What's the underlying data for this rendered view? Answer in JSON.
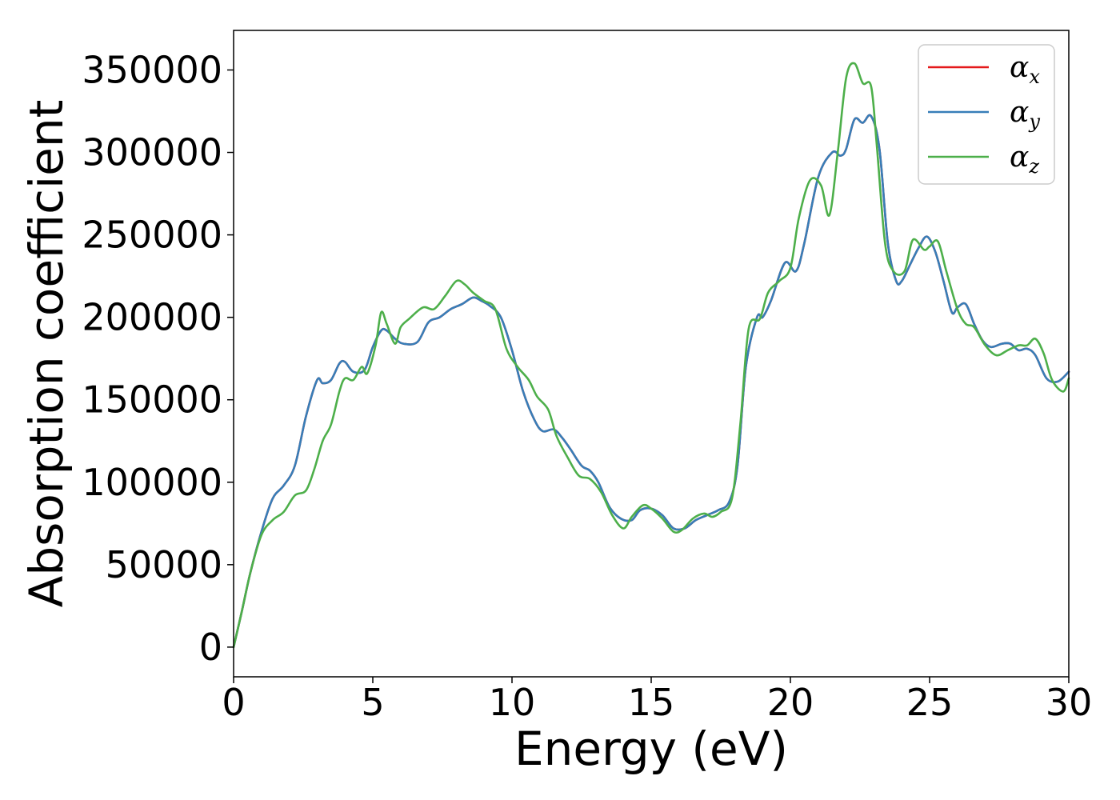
{
  "chart_data": {
    "type": "line",
    "title": "",
    "xlabel": "Energy (eV)",
    "ylabel": "Absorption coefficient",
    "xlim": [
      0,
      30
    ],
    "ylim": [
      -18000,
      374000
    ],
    "xticks": [
      0,
      5,
      10,
      15,
      20,
      25,
      30
    ],
    "yticks": [
      0,
      50000,
      100000,
      150000,
      200000,
      250000,
      300000,
      350000
    ],
    "grid": false,
    "legend_position": "top-right",
    "series": [
      {
        "name": "α",
        "subscript": "x",
        "color": "#e41a1c",
        "x": [
          0,
          0.3,
          0.6,
          1.0,
          1.4,
          1.8,
          2.2,
          2.6,
          3.0,
          3.2,
          3.5,
          3.8,
          4.0,
          4.3,
          4.7,
          5.0,
          5.3,
          5.5,
          5.8,
          6.1,
          6.6,
          7.0,
          7.4,
          7.8,
          8.2,
          8.6,
          8.9,
          9.2,
          9.6,
          10.0,
          10.4,
          10.8,
          11.1,
          11.5,
          11.8,
          12.1,
          12.5,
          12.8,
          13.1,
          13.5,
          13.9,
          14.3,
          14.6,
          15.0,
          15.4,
          15.8,
          16.2,
          16.6,
          17.0,
          17.4,
          17.8,
          18.1,
          18.4,
          18.8,
          19.0,
          19.3,
          19.8,
          20.2,
          20.5,
          21.0,
          21.5,
          21.8,
          22.0,
          22.3,
          22.6,
          22.9,
          23.2,
          23.5,
          23.8,
          24.0,
          24.3,
          24.6,
          24.9,
          25.2,
          25.5,
          25.8,
          26.0,
          26.3,
          26.6,
          26.9,
          27.2,
          27.6,
          27.9,
          28.2,
          28.5,
          28.8,
          29.2,
          29.6,
          30.0
        ],
        "y": [
          0,
          22000,
          45000,
          70000,
          90000,
          98000,
          110000,
          140000,
          162000,
          160000,
          162000,
          172000,
          173000,
          167000,
          168000,
          182000,
          192000,
          192000,
          187000,
          184000,
          185000,
          197000,
          200000,
          205000,
          208000,
          212000,
          210000,
          207000,
          200000,
          180000,
          155000,
          138000,
          131000,
          132000,
          127000,
          120000,
          110000,
          107000,
          100000,
          85000,
          78000,
          77000,
          83000,
          84000,
          80000,
          72000,
          72000,
          77000,
          80000,
          83000,
          88000,
          110000,
          170000,
          200000,
          200000,
          210000,
          233000,
          228000,
          245000,
          285000,
          300000,
          298000,
          302000,
          320000,
          318000,
          322000,
          302000,
          245000,
          222000,
          222000,
          232000,
          242000,
          249000,
          240000,
          222000,
          203000,
          206000,
          208000,
          196000,
          186000,
          182000,
          184000,
          184000,
          180000,
          181000,
          177000,
          163000,
          161000,
          167000
        ]
      },
      {
        "name": "α",
        "subscript": "y",
        "color": "#377eb8",
        "x": [
          0,
          0.3,
          0.6,
          1.0,
          1.4,
          1.8,
          2.2,
          2.6,
          3.0,
          3.2,
          3.5,
          3.8,
          4.0,
          4.3,
          4.7,
          5.0,
          5.3,
          5.5,
          5.8,
          6.1,
          6.6,
          7.0,
          7.4,
          7.8,
          8.2,
          8.6,
          8.9,
          9.2,
          9.6,
          10.0,
          10.4,
          10.8,
          11.1,
          11.5,
          11.8,
          12.1,
          12.5,
          12.8,
          13.1,
          13.5,
          13.9,
          14.3,
          14.6,
          15.0,
          15.4,
          15.8,
          16.2,
          16.6,
          17.0,
          17.4,
          17.8,
          18.1,
          18.4,
          18.8,
          19.0,
          19.3,
          19.8,
          20.2,
          20.5,
          21.0,
          21.5,
          21.8,
          22.0,
          22.3,
          22.6,
          22.9,
          23.2,
          23.5,
          23.8,
          24.0,
          24.3,
          24.6,
          24.9,
          25.2,
          25.5,
          25.8,
          26.0,
          26.3,
          26.6,
          26.9,
          27.2,
          27.6,
          27.9,
          28.2,
          28.5,
          28.8,
          29.2,
          29.6,
          30.0
        ],
        "y": [
          0,
          22000,
          45000,
          70000,
          90000,
          98000,
          110000,
          140000,
          162000,
          160000,
          162000,
          172000,
          173000,
          167000,
          168000,
          182000,
          192000,
          192000,
          187000,
          184000,
          185000,
          197000,
          200000,
          205000,
          208000,
          212000,
          210000,
          207000,
          200000,
          180000,
          155000,
          138000,
          131000,
          132000,
          127000,
          120000,
          110000,
          107000,
          100000,
          85000,
          78000,
          77000,
          83000,
          84000,
          80000,
          72000,
          72000,
          77000,
          80000,
          83000,
          88000,
          110000,
          170000,
          200000,
          200000,
          210000,
          233000,
          228000,
          245000,
          285000,
          300000,
          298000,
          302000,
          320000,
          318000,
          322000,
          302000,
          245000,
          222000,
          222000,
          232000,
          242000,
          249000,
          240000,
          222000,
          203000,
          206000,
          208000,
          196000,
          186000,
          182000,
          184000,
          184000,
          180000,
          181000,
          177000,
          163000,
          161000,
          167000
        ]
      },
      {
        "name": "α",
        "subscript": "z",
        "color": "#4daf4a",
        "x": [
          0,
          0.3,
          0.6,
          1.0,
          1.4,
          1.8,
          2.2,
          2.6,
          2.9,
          3.2,
          3.5,
          3.8,
          4.0,
          4.3,
          4.6,
          4.8,
          5.1,
          5.3,
          5.5,
          5.8,
          6.0,
          6.3,
          6.8,
          7.2,
          7.6,
          8.0,
          8.3,
          8.6,
          9.0,
          9.4,
          9.8,
          10.2,
          10.6,
          10.9,
          11.3,
          11.6,
          12.0,
          12.4,
          12.8,
          13.2,
          13.6,
          14.0,
          14.3,
          14.7,
          15.0,
          15.4,
          15.8,
          16.1,
          16.5,
          16.9,
          17.2,
          17.5,
          17.9,
          18.2,
          18.5,
          18.9,
          19.2,
          19.6,
          20.0,
          20.3,
          20.7,
          21.1,
          21.4,
          21.7,
          22.0,
          22.3,
          22.6,
          22.9,
          23.1,
          23.4,
          23.7,
          24.1,
          24.4,
          24.8,
          25.0,
          25.3,
          25.6,
          26.0,
          26.3,
          26.6,
          27.0,
          27.4,
          27.8,
          28.2,
          28.5,
          28.8,
          29.1,
          29.4,
          29.8,
          30.0
        ],
        "y": [
          0,
          22000,
          45000,
          68000,
          77000,
          82000,
          92000,
          95000,
          108000,
          125000,
          135000,
          155000,
          163000,
          162000,
          170000,
          166000,
          183000,
          203000,
          196000,
          184000,
          194000,
          199000,
          206000,
          205000,
          213000,
          222000,
          220000,
          215000,
          210000,
          205000,
          181000,
          170000,
          162000,
          152000,
          144000,
          128000,
          115000,
          104000,
          102000,
          94000,
          80000,
          72000,
          79000,
          86000,
          84000,
          78000,
          70000,
          71000,
          78000,
          81000,
          79000,
          82000,
          90000,
          135000,
          193000,
          199000,
          215000,
          222000,
          230000,
          260000,
          283000,
          280000,
          262000,
          300000,
          345000,
          354000,
          342000,
          340000,
          305000,
          245000,
          228000,
          228000,
          247000,
          241000,
          243000,
          246000,
          228000,
          205000,
          196000,
          194000,
          183000,
          177000,
          180000,
          183000,
          183000,
          187000,
          178000,
          162000,
          155000,
          163000
        ]
      }
    ]
  }
}
